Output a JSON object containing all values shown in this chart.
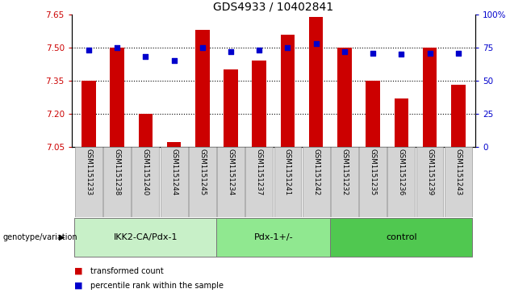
{
  "title": "GDS4933 / 10402841",
  "samples": [
    "GSM1151233",
    "GSM1151238",
    "GSM1151240",
    "GSM1151244",
    "GSM1151245",
    "GSM1151234",
    "GSM1151237",
    "GSM1151241",
    "GSM1151242",
    "GSM1151232",
    "GSM1151235",
    "GSM1151236",
    "GSM1151239",
    "GSM1151243"
  ],
  "red_values": [
    7.35,
    7.5,
    7.2,
    7.07,
    7.58,
    7.4,
    7.44,
    7.56,
    7.64,
    7.5,
    7.35,
    7.27,
    7.5,
    7.33
  ],
  "blue_values": [
    73,
    75,
    68,
    65,
    75,
    72,
    73,
    75,
    78,
    72,
    71,
    70,
    71,
    71
  ],
  "groups": [
    {
      "label": "IKK2-CA/Pdx-1",
      "start": 0,
      "end": 5,
      "color": "#c8f0c8"
    },
    {
      "label": "Pdx-1+/-",
      "start": 5,
      "end": 9,
      "color": "#90e890"
    },
    {
      "label": "control",
      "start": 9,
      "end": 14,
      "color": "#50c850"
    }
  ],
  "ylim_left": [
    7.05,
    7.65
  ],
  "ylim_right": [
    0,
    100
  ],
  "yticks_left": [
    7.05,
    7.2,
    7.35,
    7.5,
    7.65
  ],
  "yticks_right": [
    0,
    25,
    50,
    75,
    100
  ],
  "ytick_labels_right": [
    "0",
    "25",
    "50",
    "75",
    "100%"
  ],
  "hlines": [
    7.2,
    7.35,
    7.5
  ],
  "bar_color": "#cc0000",
  "dot_color": "#0000cc",
  "bar_width": 0.5,
  "title_fontsize": 10,
  "ylabel_left_color": "#cc0000",
  "ylabel_right_color": "#0000cc",
  "legend_items": [
    "transformed count",
    "percentile rank within the sample"
  ],
  "group_label_prefix": "genotype/variation"
}
